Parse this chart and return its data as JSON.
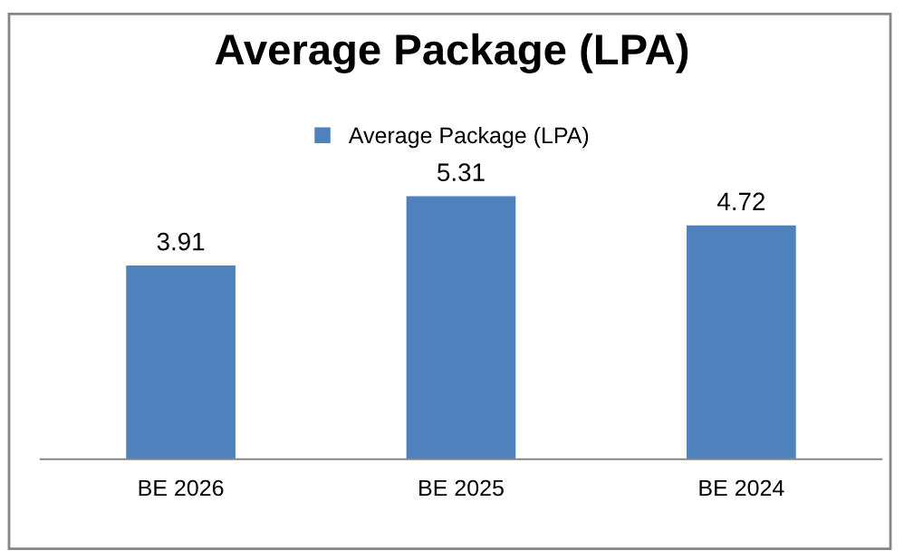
{
  "chart_data": {
    "type": "bar",
    "title": "Average Package (LPA)",
    "categories": [
      "BE 2026",
      "BE 2025",
      "BE 2024"
    ],
    "series": [
      {
        "name": "Average Package (LPA)",
        "color": "#4f81bd",
        "values": [
          3.91,
          5.31,
          4.72
        ]
      }
    ],
    "data_labels": true,
    "legend": "top"
  }
}
